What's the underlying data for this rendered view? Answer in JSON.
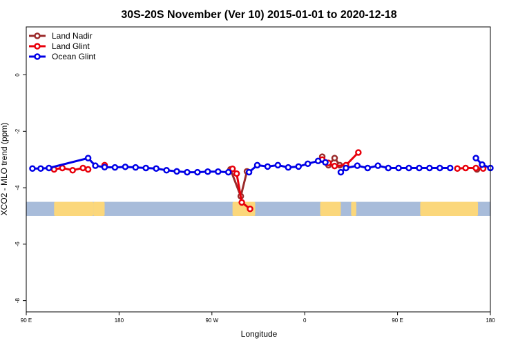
{
  "chart_data": {
    "type": "line",
    "title": "30S-20S November (Ver 10)   2015-01-01 to 2020-12-18",
    "xlabel": "Longitude",
    "ylabel": "XCO2 - MLO trend (ppm)",
    "xlim": [
      90,
      540
    ],
    "ylim": [
      -8.4,
      1.7
    ],
    "x_ticks": [
      {
        "value": 90,
        "label": "90 E"
      },
      {
        "value": 180,
        "label": "180"
      },
      {
        "value": 270,
        "label": "90 W"
      },
      {
        "value": 360,
        "label": "0"
      },
      {
        "value": 450,
        "label": "90 E"
      },
      {
        "value": 540,
        "label": "180"
      }
    ],
    "y_ticks": [
      {
        "value": 0,
        "label": "0"
      },
      {
        "value": -2,
        "label": "-2"
      },
      {
        "value": -4,
        "label": "-4"
      },
      {
        "value": -6,
        "label": "-6"
      },
      {
        "value": -8,
        "label": "-8"
      }
    ],
    "legend_position": "top-left",
    "grid": false,
    "map_band": {
      "y_top": -4.5,
      "y_bottom": -5.0,
      "ocean_color": "#a8bcda",
      "land_color": "#fbd77b"
    },
    "land_spans": [
      [
        117,
        155
      ],
      [
        155,
        166
      ],
      [
        290,
        312
      ],
      [
        375,
        395
      ],
      [
        405,
        410
      ],
      [
        472,
        528
      ],
      [
        540,
        542
      ]
    ],
    "series": [
      {
        "name": "Land Nadir",
        "color": "#9b2b2b",
        "segments": [
          [
            [
              288,
              -3.35
            ],
            [
              298,
              -4.3
            ],
            [
              304,
              -3.42
            ]
          ],
          [
            [
              377,
              -2.9
            ],
            [
              383,
              -3.2
            ],
            [
              389,
              -2.95
            ],
            [
              394,
              -3.2
            ]
          ],
          [
            [
              527,
              -3.35
            ]
          ]
        ]
      },
      {
        "name": "Land Glint",
        "color": "#e8000b",
        "segments": [
          [
            [
              117,
              -3.35
            ],
            [
              125,
              -3.3
            ],
            [
              135,
              -3.38
            ],
            [
              145,
              -3.3
            ],
            [
              150,
              -3.35
            ]
          ],
          [
            [
              166,
              -3.2
            ]
          ],
          [
            [
              290,
              -3.33
            ],
            [
              294,
              -3.5
            ],
            [
              299,
              -4.52
            ],
            [
              307,
              -4.75
            ]
          ],
          [
            [
              377,
              -3.0
            ],
            [
              383,
              -3.12
            ],
            [
              389,
              -3.23
            ],
            [
              400,
              -3.2
            ],
            [
              412,
              -2.75
            ]
          ],
          [
            [
              508,
              -3.32
            ],
            [
              516,
              -3.3
            ],
            [
              526,
              -3.3
            ],
            [
              533,
              -3.32
            ],
            [
              544,
              -3.2
            ]
          ]
        ]
      },
      {
        "name": "Ocean Glint",
        "color": "#0000e6",
        "segments": [
          [
            [
              96,
              -3.32
            ],
            [
              104,
              -3.32
            ],
            [
              112,
              -3.3
            ],
            [
              150,
              -2.95
            ],
            [
              157,
              -3.22
            ],
            [
              166,
              -3.27
            ],
            [
              176,
              -3.28
            ],
            [
              186,
              -3.26
            ],
            [
              196,
              -3.28
            ],
            [
              206,
              -3.3
            ],
            [
              216,
              -3.32
            ],
            [
              226,
              -3.38
            ],
            [
              236,
              -3.42
            ],
            [
              246,
              -3.45
            ],
            [
              256,
              -3.45
            ],
            [
              266,
              -3.43
            ],
            [
              276,
              -3.43
            ],
            [
              286,
              -3.45
            ]
          ],
          [
            [
              306,
              -3.45
            ],
            [
              314,
              -3.2
            ],
            [
              324,
              -3.25
            ],
            [
              334,
              -3.2
            ],
            [
              344,
              -3.28
            ],
            [
              354,
              -3.25
            ],
            [
              363,
              -3.15
            ],
            [
              373,
              -3.05
            ],
            [
              380,
              -3.1
            ]
          ],
          [
            [
              395,
              -3.45
            ],
            [
              400,
              -3.3
            ],
            [
              411,
              -3.22
            ],
            [
              421,
              -3.3
            ],
            [
              431,
              -3.22
            ],
            [
              441,
              -3.3
            ],
            [
              451,
              -3.3
            ],
            [
              461,
              -3.3
            ],
            [
              471,
              -3.3
            ],
            [
              481,
              -3.3
            ],
            [
              491,
              -3.3
            ],
            [
              501,
              -3.3
            ]
          ],
          [
            [
              526,
              -2.95
            ],
            [
              532,
              -3.18
            ],
            [
              543,
              -3.3
            ],
            [
              553,
              -3.3
            ]
          ]
        ]
      }
    ]
  }
}
